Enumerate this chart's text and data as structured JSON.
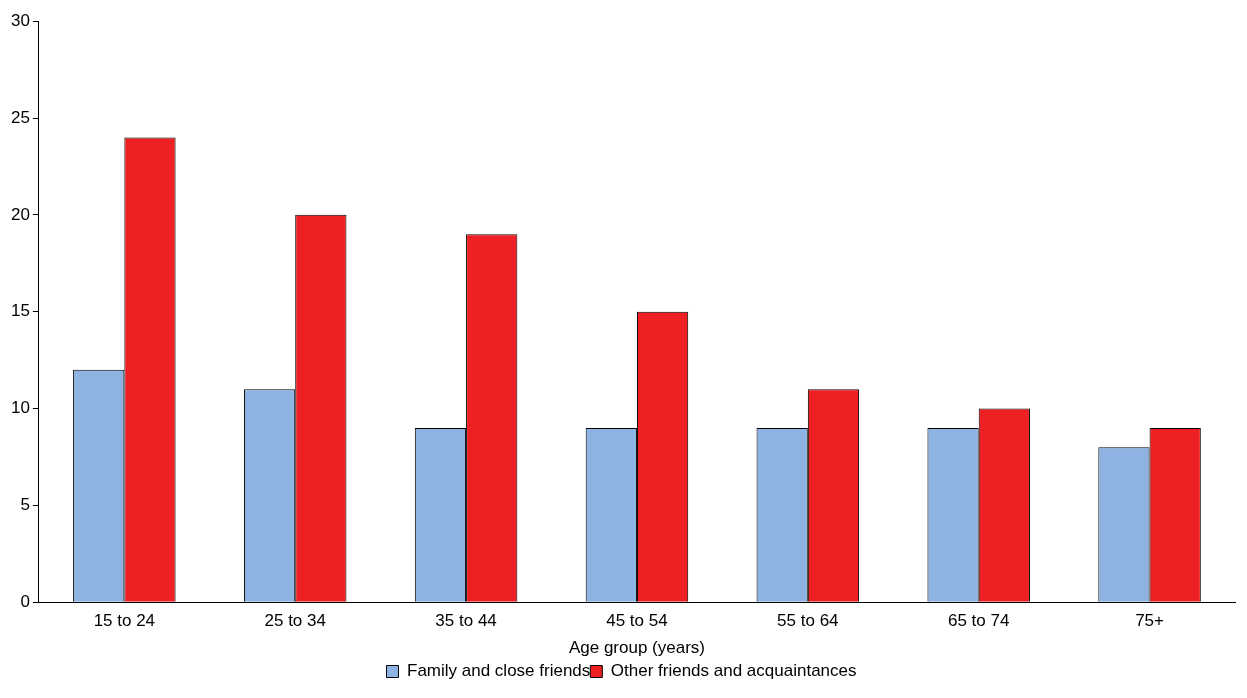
{
  "chart_data": {
    "type": "bar",
    "xlabel": "Age group (years)",
    "categories": [
      "15 to 24",
      "25 to 34",
      "35 to 44",
      "45 to 54",
      "55 to 64",
      "65 to 74",
      "75+"
    ],
    "series": [
      {
        "name": "Family and close friends",
        "color": "#8db3e2",
        "values": [
          12,
          11,
          9,
          9,
          9,
          9,
          8
        ]
      },
      {
        "name": "Other friends and acquaintances",
        "color": "#ee2024",
        "values": [
          24,
          20,
          19,
          15,
          11,
          10,
          9
        ]
      }
    ],
    "ylim": [
      0,
      30
    ],
    "yticks": [
      0,
      5,
      10,
      15,
      20,
      25,
      30
    ],
    "grid": false,
    "legend": "bottom"
  }
}
